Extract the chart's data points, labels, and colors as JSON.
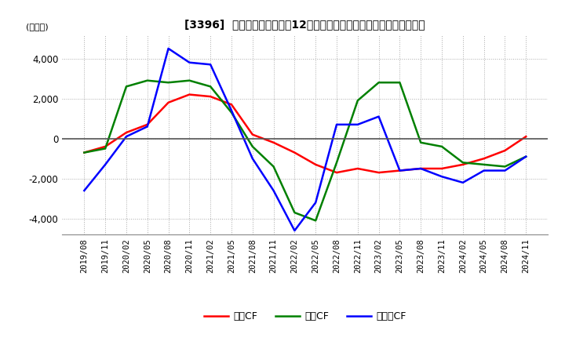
{
  "title": "[3396]  キャッシュフローの12か月移動合計の対前年同期増減額の推移",
  "ylabel": "(百万円)",
  "ylim": [
    -4800,
    5200
  ],
  "yticks": [
    -4000,
    -2000,
    0,
    2000,
    4000
  ],
  "background_color": "#ffffff",
  "grid_color": "#aaaaaa",
  "legend_labels": [
    "営業CF",
    "投資CF",
    "フリーCF"
  ],
  "line_colors": [
    "#ff0000",
    "#008000",
    "#0000ff"
  ],
  "dates": [
    "2019/08",
    "2019/11",
    "2020/02",
    "2020/05",
    "2020/08",
    "2020/11",
    "2021/02",
    "2021/05",
    "2021/08",
    "2021/11",
    "2022/02",
    "2022/05",
    "2022/08",
    "2022/11",
    "2023/02",
    "2023/05",
    "2023/08",
    "2023/11",
    "2024/02",
    "2024/05",
    "2024/08",
    "2024/11"
  ],
  "eigyo_cf": [
    -700,
    -400,
    300,
    700,
    1800,
    2200,
    2100,
    1700,
    200,
    -200,
    -700,
    -1300,
    -1700,
    -1500,
    -1700,
    -1600,
    -1500,
    -1500,
    -1300,
    -1000,
    -600,
    100
  ],
  "toshi_cf": [
    -700,
    -500,
    2600,
    2900,
    2800,
    2900,
    2600,
    1300,
    -400,
    -1400,
    -3700,
    -4100,
    -1200,
    1900,
    2800,
    2800,
    -200,
    -400,
    -1200,
    -1300,
    -1400,
    -900
  ],
  "free_cf": [
    -2600,
    -1300,
    100,
    600,
    4500,
    3800,
    3700,
    1400,
    -1000,
    -2600,
    -4600,
    -3200,
    700,
    700,
    1100,
    -1600,
    -1500,
    -1900,
    -2200,
    -1600,
    -1600,
    -900
  ]
}
